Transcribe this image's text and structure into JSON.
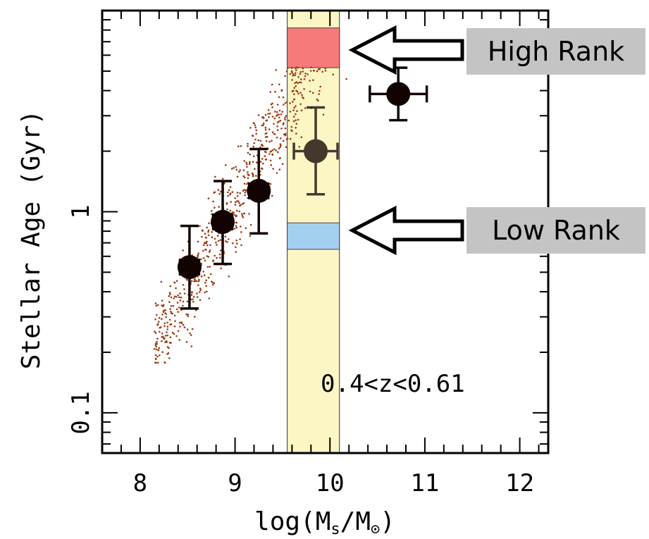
{
  "chart_data": {
    "type": "scatter",
    "title": "",
    "xlabel_main": "log(M",
    "xlabel_sub1": "s",
    "xlabel_mid": "/M",
    "xlabel_sub2": "⊙",
    "xlabel_end": ")",
    "ylabel": "Stellar Age (Gyr)",
    "xlim": [
      7.6,
      12.3
    ],
    "ylim_log10": [
      -1.2,
      1.0
    ],
    "y_scale": "log",
    "x_ticks": [
      {
        "value": 8,
        "label": "8"
      },
      {
        "value": 9,
        "label": "9"
      },
      {
        "value": 10,
        "label": "10"
      },
      {
        "value": 11,
        "label": "11"
      },
      {
        "value": 12,
        "label": "12"
      }
    ],
    "y_ticks": [
      {
        "value": 0.1,
        "label": "0.1"
      },
      {
        "value": 1,
        "label": "1"
      }
    ],
    "annotation": "0.4<z<0.61",
    "highlight_band": {
      "x_range": [
        9.55,
        10.1
      ],
      "color": "#fbf6c4"
    },
    "rank_boxes": [
      {
        "name": "high",
        "y_range": [
          5.2,
          8.2
        ],
        "color": "#f77a7a"
      },
      {
        "name": "low",
        "y_range": [
          0.65,
          0.88
        ],
        "color": "#a5cff0"
      }
    ],
    "callouts": [
      {
        "name": "high-rank",
        "label": "High Rank",
        "box_color": "#c4c4c4"
      },
      {
        "name": "low-rank",
        "label": "Low Rank",
        "box_color": "#c4c4c4"
      }
    ],
    "binned_points": [
      {
        "x": 8.52,
        "y": 0.53,
        "xerr": 0.1,
        "y_low": 0.33,
        "y_high": 0.85
      },
      {
        "x": 8.87,
        "y": 0.89,
        "xerr": 0.1,
        "y_low": 0.55,
        "y_high": 1.42
      },
      {
        "x": 9.25,
        "y": 1.27,
        "xerr": 0.1,
        "y_low": 0.78,
        "y_high": 2.05
      },
      {
        "x": 9.85,
        "y": 2.0,
        "xerr": 0.23,
        "y_low": 1.22,
        "y_high": 3.3
      },
      {
        "x": 10.72,
        "y": 3.85,
        "xerr": 0.3,
        "y_low": 2.85,
        "y_high": 5.2
      }
    ],
    "scatter_color": "#9e3a12",
    "marker_color": "#120202"
  }
}
